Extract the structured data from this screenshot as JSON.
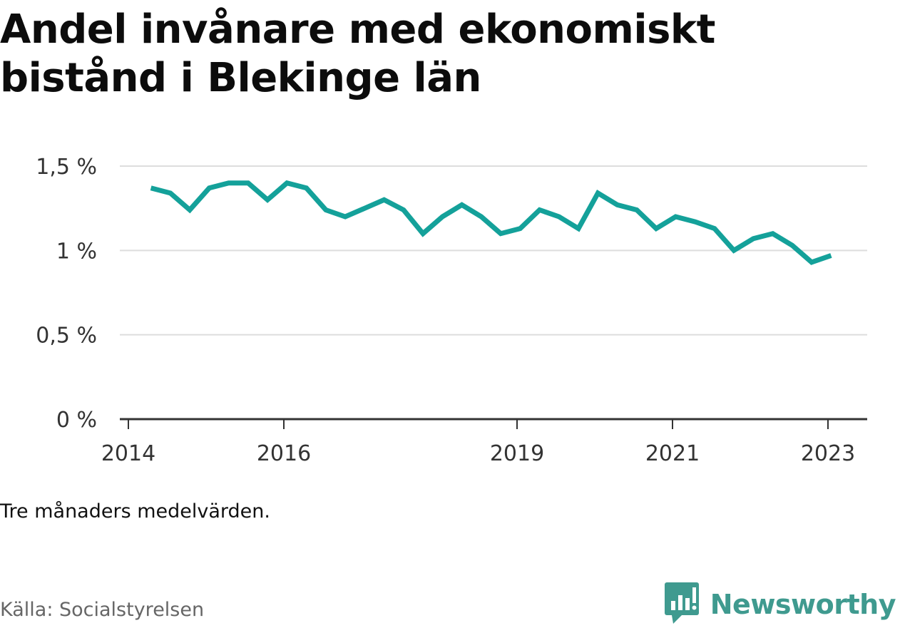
{
  "title": "Andel invånare med ekonomiskt bistånd i Blekinge län",
  "note": "Tre månaders medelvärden.",
  "source": "Källa: Socialstyrelsen",
  "brand": {
    "name": "Newsworthy",
    "icon": "newsworthy-logo-icon",
    "color": "#3f9a8f"
  },
  "chart_data": {
    "type": "line",
    "title": "Andel invånare med ekonomiskt bistånd i Blekinge län",
    "xlabel": "",
    "ylabel": "",
    "ylim": [
      0,
      1.5
    ],
    "xlim": [
      2014,
      2023.5
    ],
    "y_ticks": [
      0,
      0.5,
      1,
      1.5
    ],
    "y_tick_labels": [
      "0 %",
      "0,5 %",
      "1 %",
      "1,5 %"
    ],
    "x_ticks": [
      2014,
      2016,
      2019,
      2021,
      2023
    ],
    "x_tick_labels": [
      "2014",
      "2016",
      "2019",
      "2021",
      "2023"
    ],
    "grid": true,
    "line_color": "#14a19a",
    "series": [
      {
        "x": [
          2014.29,
          2014.54,
          2014.79,
          2015.04,
          2015.29,
          2015.54,
          2015.79,
          2016.04,
          2016.29,
          2016.54,
          2016.79,
          2017.04,
          2017.29,
          2017.54,
          2017.79,
          2018.04,
          2018.29,
          2018.54,
          2018.79,
          2019.04,
          2019.29,
          2019.54,
          2019.79,
          2020.04,
          2020.29,
          2020.54,
          2020.79,
          2021.04,
          2021.29,
          2021.54,
          2021.79,
          2022.04,
          2022.29,
          2022.54,
          2022.79,
          2023.04
        ],
        "values": [
          1.37,
          1.34,
          1.24,
          1.37,
          1.4,
          1.4,
          1.3,
          1.4,
          1.37,
          1.24,
          1.2,
          1.25,
          1.3,
          1.24,
          1.1,
          1.2,
          1.27,
          1.2,
          1.1,
          1.13,
          1.24,
          1.2,
          1.13,
          1.34,
          1.27,
          1.24,
          1.13,
          1.2,
          1.17,
          1.13,
          1.0,
          1.07,
          1.1,
          1.03,
          0.93,
          0.97
        ]
      }
    ]
  }
}
